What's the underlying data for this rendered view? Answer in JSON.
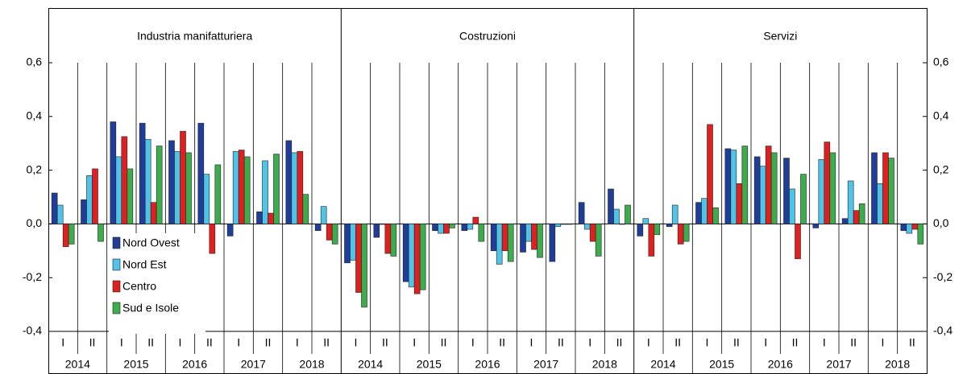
{
  "chart_data": {
    "type": "bar",
    "years": [
      "2014",
      "2015",
      "2016",
      "2017",
      "2018"
    ],
    "halves": [
      "I",
      "II"
    ],
    "ylim": [
      -0.4,
      0.6
    ],
    "yticks": [
      {
        "value": -0.4,
        "label": "-0,4"
      },
      {
        "value": -0.2,
        "label": "-0,2"
      },
      {
        "value": 0,
        "label": "0,0"
      },
      {
        "value": 0.2,
        "label": "0,2"
      },
      {
        "value": 0.4,
        "label": "0,4"
      },
      {
        "value": 0.6,
        "label": "0,6"
      }
    ],
    "legend": [
      {
        "name": "Nord Ovest",
        "color": "#1f3d99"
      },
      {
        "name": "Nord Est",
        "color": "#4fc3e8"
      },
      {
        "name": "Centro",
        "color": "#e02020"
      },
      {
        "name": "Sud e Isole",
        "color": "#3cac4c"
      }
    ],
    "panels": [
      {
        "title": "Industria manifatturiera",
        "values": [
          [
            0.115,
            0.09,
            0.38,
            0.375,
            0.31,
            0.375,
            -0.045,
            0.045,
            0.31,
            -0.025
          ],
          [
            0.07,
            0.18,
            0.25,
            0.315,
            0.27,
            0.185,
            0.27,
            0.235,
            0.265,
            0.065
          ],
          [
            -0.085,
            0.205,
            0.325,
            0.08,
            0.345,
            -0.11,
            0.275,
            0.04,
            0.27,
            -0.06
          ],
          [
            -0.075,
            -0.065,
            0.205,
            0.29,
            0.265,
            0.22,
            0.25,
            0.26,
            0.11,
            -0.075
          ]
        ]
      },
      {
        "title": "Costruzioni",
        "values": [
          [
            -0.145,
            -0.05,
            -0.215,
            -0.025,
            -0.025,
            -0.1,
            -0.105,
            -0.14,
            0.08,
            0.13
          ],
          [
            -0.135,
            0,
            -0.235,
            -0.035,
            -0.02,
            -0.15,
            -0.065,
            -0.01,
            -0.02,
            0.055
          ],
          [
            -0.255,
            -0.11,
            -0.26,
            -0.035,
            0.025,
            -0.1,
            -0.095,
            0,
            -0.065,
            0
          ],
          [
            -0.31,
            -0.12,
            -0.245,
            -0.015,
            -0.065,
            -0.14,
            -0.125,
            0,
            -0.12,
            0.07
          ]
        ]
      },
      {
        "title": "Servizi",
        "values": [
          [
            -0.045,
            -0.01,
            0.08,
            0.28,
            0.25,
            0.245,
            -0.015,
            0.02,
            0.265,
            -0.025
          ],
          [
            0.02,
            0.07,
            0.095,
            0.275,
            0.215,
            0.13,
            0.24,
            0.16,
            0.15,
            -0.035
          ],
          [
            -0.12,
            -0.075,
            0.37,
            0.15,
            0.29,
            -0.13,
            0.305,
            0.05,
            0.265,
            -0.02
          ],
          [
            -0.04,
            -0.065,
            0.06,
            0.29,
            0.265,
            0.185,
            0.265,
            0.075,
            0.245,
            -0.075
          ]
        ]
      }
    ]
  }
}
